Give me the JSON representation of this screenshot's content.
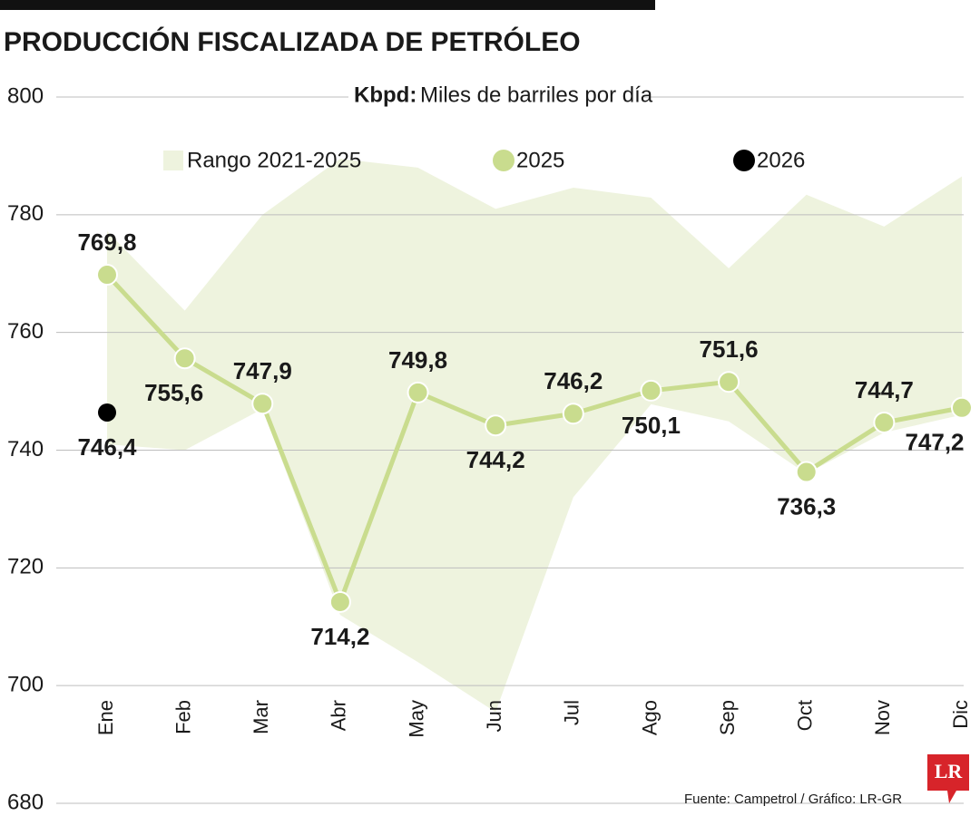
{
  "chart_data": {
    "type": "line",
    "title": "PRODUCCIÓN FISCALIZADA DE PETRÓLEO",
    "subtitle_bold": "Kbpd:",
    "subtitle": "Miles de barriles por día",
    "categories": [
      "Ene",
      "Feb",
      "Mar",
      "Abr",
      "May",
      "Jun",
      "Jul",
      "Ago",
      "Sep",
      "Oct",
      "Nov",
      "Dic"
    ],
    "series": [
      {
        "name": "Rango 2021-2025",
        "type": "band",
        "color": "#eef3de",
        "low": [
          741,
          740,
          747,
          712,
          704,
          695.5,
          732,
          747.8,
          744.9,
          736,
          743,
          746
        ],
        "high": [
          777.2,
          763.7,
          780,
          789.5,
          788,
          781,
          784.6,
          782.9,
          770.9,
          783.4,
          778,
          786.5
        ]
      },
      {
        "name": "2025",
        "color": "#c9dc8e",
        "values": [
          769.8,
          755.6,
          747.9,
          714.2,
          749.8,
          744.2,
          746.2,
          750.1,
          751.6,
          736.3,
          744.7,
          747.2
        ],
        "value_labels": [
          "769,8",
          "755,6",
          "747,9",
          "714,2",
          "749,8",
          "744,2",
          "746,2",
          "750,1",
          "751,6",
          "736,3",
          "744,7",
          "747,2"
        ]
      },
      {
        "name": "2026",
        "color": "#000000",
        "values": [
          746.4,
          null,
          null,
          null,
          null,
          null,
          null,
          null,
          null,
          null,
          null,
          null
        ],
        "value_labels": [
          "746,4",
          null,
          null,
          null,
          null,
          null,
          null,
          null,
          null,
          null,
          null,
          null
        ]
      }
    ],
    "ylim": [
      680,
      800
    ],
    "yticks": [
      680,
      700,
      720,
      740,
      760,
      780,
      800
    ],
    "grid": true,
    "source": "Fuente: Campetrol / Gráfico: LR-GR",
    "logo": "LR"
  }
}
